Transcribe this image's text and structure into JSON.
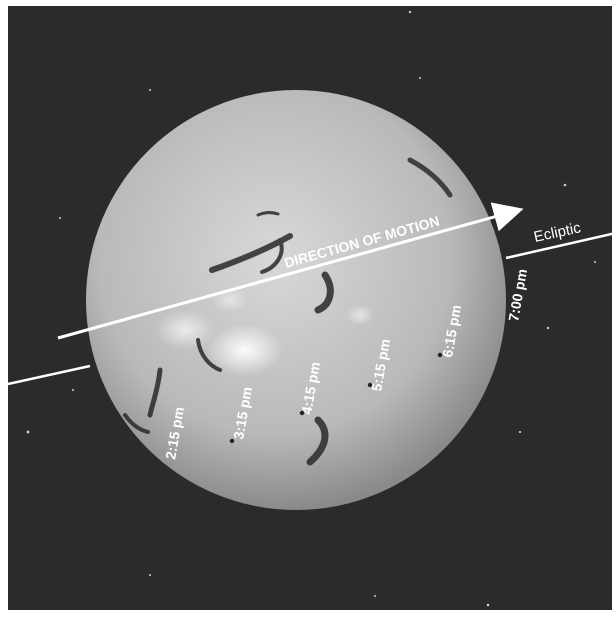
{
  "labels": {
    "direction": "DIRECTION OF MOTION",
    "ecliptic": "Ecliptic"
  },
  "times": [
    "2:15 pm",
    "3:15 pm",
    "4:15 pm",
    "5:15 pm",
    "6:15 pm",
    "7:00 pm"
  ],
  "colors": {
    "sky": "#2b2b2d",
    "sun_center": "#d6d6d6",
    "sun_edge": "#8e8e8e",
    "line": "#ffffff",
    "ecliptic_text": "#d8d8d8"
  }
}
